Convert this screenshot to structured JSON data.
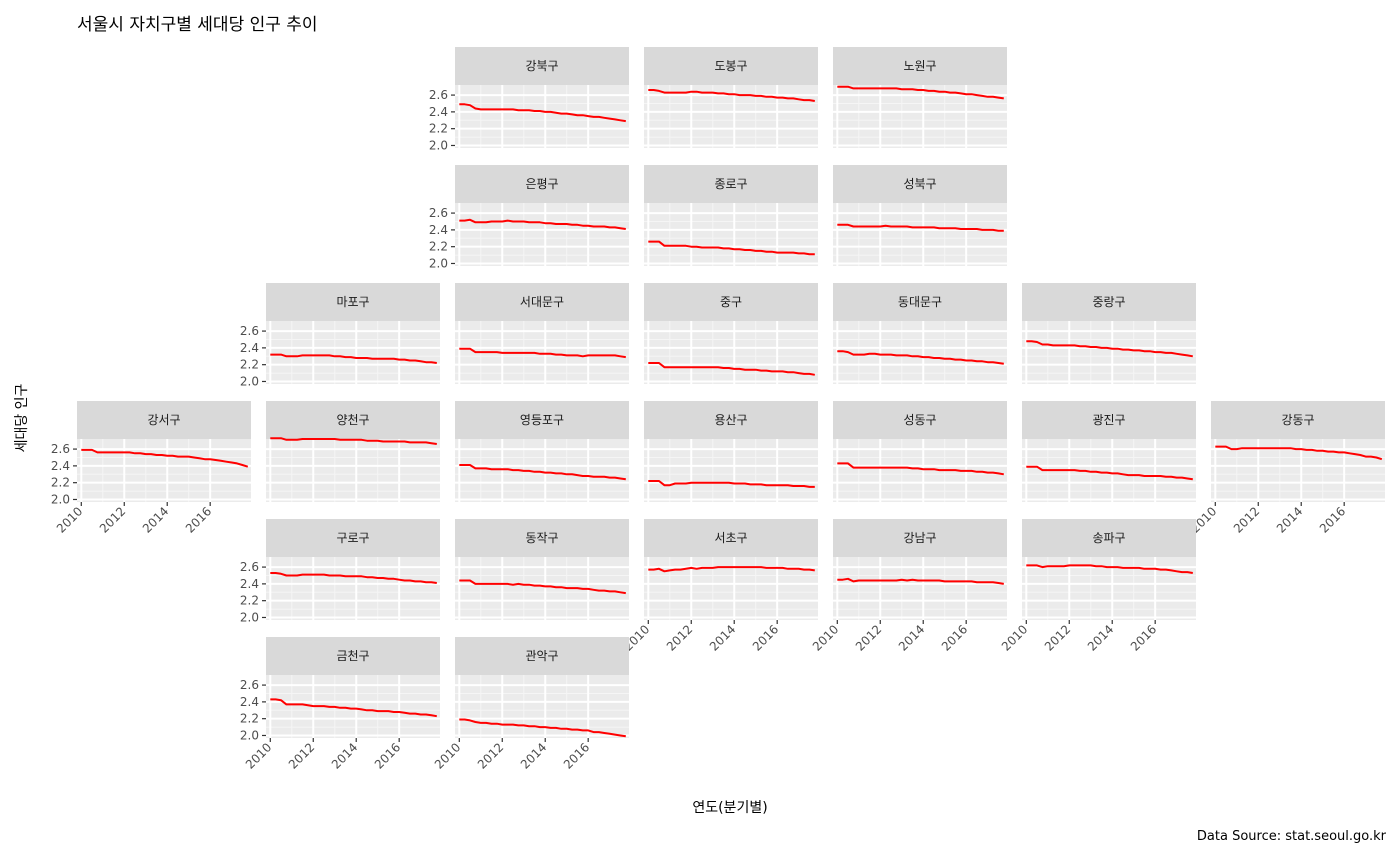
{
  "chart_data": {
    "type": "line",
    "title": "서울시 자치구별 세대당 인구 추이",
    "xlabel": "연도(분기별)",
    "ylabel": "세대당 인구",
    "caption": "Data Source: stat.seoul.go.kr",
    "y_ticks": [
      "2.0",
      "2.2",
      "2.4",
      "2.6"
    ],
    "x_ticks": [
      "2010",
      "2012",
      "2014",
      "2016"
    ],
    "ylim": [
      1.97,
      2.72
    ],
    "xlim": [
      2009.8,
      2017.9
    ],
    "line_color": "#ff0000",
    "grid": true,
    "x_quarters": [
      2010.0,
      2010.25,
      2010.5,
      2010.75,
      2011.0,
      2011.25,
      2011.5,
      2011.75,
      2012.0,
      2012.25,
      2012.5,
      2012.75,
      2013.0,
      2013.25,
      2013.5,
      2013.75,
      2014.0,
      2014.25,
      2014.5,
      2014.75,
      2015.0,
      2015.25,
      2015.5,
      2015.75,
      2016.0,
      2016.25,
      2016.5,
      2016.75,
      2017.0,
      2017.25,
      2017.5,
      2017.75
    ],
    "panels": [
      {
        "name": "강북구",
        "row": 0,
        "col": 2,
        "values": [
          2.49,
          2.49,
          2.48,
          2.44,
          2.43,
          2.43,
          2.43,
          2.43,
          2.43,
          2.43,
          2.43,
          2.42,
          2.42,
          2.42,
          2.41,
          2.41,
          2.4,
          2.4,
          2.39,
          2.38,
          2.38,
          2.37,
          2.36,
          2.36,
          2.35,
          2.34,
          2.34,
          2.33,
          2.32,
          2.31,
          2.3,
          2.29
        ]
      },
      {
        "name": "도봉구",
        "row": 0,
        "col": 3,
        "values": [
          2.66,
          2.66,
          2.65,
          2.63,
          2.63,
          2.63,
          2.63,
          2.63,
          2.64,
          2.64,
          2.63,
          2.63,
          2.63,
          2.62,
          2.62,
          2.61,
          2.61,
          2.6,
          2.6,
          2.6,
          2.59,
          2.59,
          2.58,
          2.58,
          2.57,
          2.57,
          2.56,
          2.56,
          2.55,
          2.54,
          2.54,
          2.53
        ]
      },
      {
        "name": "노원구",
        "row": 0,
        "col": 4,
        "values": [
          2.7,
          2.7,
          2.7,
          2.68,
          2.68,
          2.68,
          2.68,
          2.68,
          2.68,
          2.68,
          2.68,
          2.68,
          2.67,
          2.67,
          2.67,
          2.66,
          2.66,
          2.65,
          2.65,
          2.64,
          2.64,
          2.63,
          2.63,
          2.62,
          2.61,
          2.61,
          2.6,
          2.59,
          2.58,
          2.58,
          2.57,
          2.56
        ]
      },
      {
        "name": "은평구",
        "row": 1,
        "col": 2,
        "values": [
          2.51,
          2.51,
          2.52,
          2.49,
          2.49,
          2.49,
          2.5,
          2.5,
          2.5,
          2.51,
          2.5,
          2.5,
          2.5,
          2.49,
          2.49,
          2.49,
          2.48,
          2.48,
          2.47,
          2.47,
          2.47,
          2.46,
          2.46,
          2.45,
          2.45,
          2.44,
          2.44,
          2.44,
          2.43,
          2.43,
          2.42,
          2.41
        ]
      },
      {
        "name": "종로구",
        "row": 1,
        "col": 3,
        "values": [
          2.26,
          2.26,
          2.26,
          2.21,
          2.21,
          2.21,
          2.21,
          2.21,
          2.2,
          2.2,
          2.19,
          2.19,
          2.19,
          2.19,
          2.18,
          2.18,
          2.17,
          2.17,
          2.16,
          2.16,
          2.15,
          2.15,
          2.14,
          2.14,
          2.13,
          2.13,
          2.13,
          2.13,
          2.12,
          2.12,
          2.11,
          2.11
        ]
      },
      {
        "name": "성북구",
        "row": 1,
        "col": 4,
        "values": [
          2.46,
          2.46,
          2.46,
          2.44,
          2.44,
          2.44,
          2.44,
          2.44,
          2.44,
          2.45,
          2.44,
          2.44,
          2.44,
          2.44,
          2.43,
          2.43,
          2.43,
          2.43,
          2.43,
          2.42,
          2.42,
          2.42,
          2.42,
          2.41,
          2.41,
          2.41,
          2.41,
          2.4,
          2.4,
          2.4,
          2.39,
          2.39
        ]
      },
      {
        "name": "마포구",
        "row": 2,
        "col": 1,
        "values": [
          2.32,
          2.32,
          2.32,
          2.3,
          2.3,
          2.3,
          2.31,
          2.31,
          2.31,
          2.31,
          2.31,
          2.31,
          2.3,
          2.3,
          2.29,
          2.29,
          2.28,
          2.28,
          2.28,
          2.27,
          2.27,
          2.27,
          2.27,
          2.27,
          2.26,
          2.26,
          2.25,
          2.25,
          2.24,
          2.23,
          2.23,
          2.22
        ]
      },
      {
        "name": "서대문구",
        "row": 2,
        "col": 2,
        "values": [
          2.39,
          2.39,
          2.39,
          2.35,
          2.35,
          2.35,
          2.35,
          2.35,
          2.34,
          2.34,
          2.34,
          2.34,
          2.34,
          2.34,
          2.34,
          2.33,
          2.33,
          2.33,
          2.32,
          2.32,
          2.31,
          2.31,
          2.31,
          2.3,
          2.31,
          2.31,
          2.31,
          2.31,
          2.31,
          2.31,
          2.3,
          2.29
        ]
      },
      {
        "name": "중구",
        "row": 2,
        "col": 3,
        "values": [
          2.22,
          2.22,
          2.22,
          2.17,
          2.17,
          2.17,
          2.17,
          2.17,
          2.17,
          2.17,
          2.17,
          2.17,
          2.17,
          2.17,
          2.16,
          2.16,
          2.15,
          2.15,
          2.14,
          2.14,
          2.14,
          2.13,
          2.13,
          2.12,
          2.12,
          2.12,
          2.11,
          2.11,
          2.1,
          2.09,
          2.09,
          2.08
        ]
      },
      {
        "name": "동대문구",
        "row": 2,
        "col": 4,
        "values": [
          2.36,
          2.36,
          2.35,
          2.32,
          2.32,
          2.32,
          2.33,
          2.33,
          2.32,
          2.32,
          2.32,
          2.31,
          2.31,
          2.31,
          2.3,
          2.3,
          2.29,
          2.29,
          2.28,
          2.28,
          2.27,
          2.27,
          2.26,
          2.26,
          2.25,
          2.25,
          2.24,
          2.24,
          2.23,
          2.23,
          2.22,
          2.21
        ]
      },
      {
        "name": "중랑구",
        "row": 2,
        "col": 5,
        "values": [
          2.48,
          2.48,
          2.47,
          2.44,
          2.44,
          2.43,
          2.43,
          2.43,
          2.43,
          2.43,
          2.42,
          2.42,
          2.41,
          2.41,
          2.4,
          2.4,
          2.39,
          2.39,
          2.38,
          2.38,
          2.37,
          2.37,
          2.36,
          2.36,
          2.35,
          2.35,
          2.34,
          2.34,
          2.33,
          2.32,
          2.31,
          2.3
        ]
      },
      {
        "name": "강서구",
        "row": 3,
        "col": 0,
        "values": [
          2.59,
          2.59,
          2.59,
          2.56,
          2.56,
          2.56,
          2.56,
          2.56,
          2.56,
          2.56,
          2.55,
          2.55,
          2.54,
          2.54,
          2.53,
          2.53,
          2.52,
          2.52,
          2.51,
          2.51,
          2.51,
          2.5,
          2.49,
          2.48,
          2.48,
          2.47,
          2.46,
          2.45,
          2.44,
          2.43,
          2.41,
          2.39
        ]
      },
      {
        "name": "양천구",
        "row": 3,
        "col": 1,
        "values": [
          2.73,
          2.73,
          2.73,
          2.71,
          2.71,
          2.71,
          2.72,
          2.72,
          2.72,
          2.72,
          2.72,
          2.72,
          2.72,
          2.71,
          2.71,
          2.71,
          2.71,
          2.71,
          2.7,
          2.7,
          2.7,
          2.69,
          2.69,
          2.69,
          2.69,
          2.69,
          2.68,
          2.68,
          2.68,
          2.68,
          2.67,
          2.66
        ]
      },
      {
        "name": "영등포구",
        "row": 3,
        "col": 2,
        "values": [
          2.41,
          2.41,
          2.41,
          2.37,
          2.37,
          2.37,
          2.36,
          2.36,
          2.36,
          2.36,
          2.35,
          2.35,
          2.34,
          2.34,
          2.33,
          2.33,
          2.32,
          2.32,
          2.31,
          2.31,
          2.3,
          2.3,
          2.29,
          2.28,
          2.28,
          2.27,
          2.27,
          2.27,
          2.26,
          2.26,
          2.25,
          2.24
        ]
      },
      {
        "name": "용산구",
        "row": 3,
        "col": 3,
        "values": [
          2.22,
          2.22,
          2.22,
          2.17,
          2.17,
          2.19,
          2.19,
          2.19,
          2.2,
          2.2,
          2.2,
          2.2,
          2.2,
          2.2,
          2.2,
          2.2,
          2.19,
          2.19,
          2.19,
          2.18,
          2.18,
          2.18,
          2.17,
          2.17,
          2.17,
          2.17,
          2.17,
          2.16,
          2.16,
          2.16,
          2.15,
          2.15
        ]
      },
      {
        "name": "성동구",
        "row": 3,
        "col": 4,
        "values": [
          2.43,
          2.43,
          2.43,
          2.38,
          2.38,
          2.38,
          2.38,
          2.38,
          2.38,
          2.38,
          2.38,
          2.38,
          2.38,
          2.38,
          2.37,
          2.37,
          2.36,
          2.36,
          2.36,
          2.35,
          2.35,
          2.35,
          2.35,
          2.34,
          2.34,
          2.34,
          2.33,
          2.33,
          2.32,
          2.32,
          2.31,
          2.3
        ]
      },
      {
        "name": "광진구",
        "row": 3,
        "col": 5,
        "values": [
          2.39,
          2.39,
          2.39,
          2.35,
          2.35,
          2.35,
          2.35,
          2.35,
          2.35,
          2.35,
          2.34,
          2.34,
          2.33,
          2.33,
          2.32,
          2.32,
          2.31,
          2.31,
          2.3,
          2.29,
          2.29,
          2.29,
          2.28,
          2.28,
          2.28,
          2.28,
          2.27,
          2.27,
          2.26,
          2.26,
          2.25,
          2.24
        ]
      },
      {
        "name": "강동구",
        "row": 3,
        "col": 6,
        "values": [
          2.63,
          2.63,
          2.63,
          2.6,
          2.6,
          2.61,
          2.61,
          2.61,
          2.61,
          2.61,
          2.61,
          2.61,
          2.61,
          2.61,
          2.61,
          2.6,
          2.6,
          2.59,
          2.59,
          2.58,
          2.58,
          2.57,
          2.57,
          2.56,
          2.56,
          2.55,
          2.54,
          2.53,
          2.51,
          2.51,
          2.5,
          2.48
        ]
      },
      {
        "name": "구로구",
        "row": 4,
        "col": 1,
        "values": [
          2.53,
          2.53,
          2.52,
          2.5,
          2.5,
          2.5,
          2.51,
          2.51,
          2.51,
          2.51,
          2.51,
          2.5,
          2.5,
          2.5,
          2.49,
          2.49,
          2.49,
          2.49,
          2.48,
          2.48,
          2.47,
          2.47,
          2.46,
          2.46,
          2.45,
          2.44,
          2.44,
          2.43,
          2.43,
          2.42,
          2.42,
          2.41
        ]
      },
      {
        "name": "동작구",
        "row": 4,
        "col": 2,
        "values": [
          2.44,
          2.44,
          2.44,
          2.4,
          2.4,
          2.4,
          2.4,
          2.4,
          2.4,
          2.4,
          2.39,
          2.4,
          2.39,
          2.39,
          2.38,
          2.38,
          2.37,
          2.37,
          2.36,
          2.36,
          2.35,
          2.35,
          2.35,
          2.34,
          2.34,
          2.33,
          2.32,
          2.32,
          2.31,
          2.31,
          2.3,
          2.29
        ]
      },
      {
        "name": "서초구",
        "row": 4,
        "col": 3,
        "values": [
          2.57,
          2.57,
          2.58,
          2.55,
          2.56,
          2.57,
          2.57,
          2.58,
          2.59,
          2.58,
          2.59,
          2.59,
          2.59,
          2.6,
          2.6,
          2.6,
          2.6,
          2.6,
          2.6,
          2.6,
          2.6,
          2.6,
          2.59,
          2.59,
          2.59,
          2.59,
          2.58,
          2.58,
          2.58,
          2.57,
          2.57,
          2.56
        ]
      },
      {
        "name": "강남구",
        "row": 4,
        "col": 4,
        "values": [
          2.45,
          2.45,
          2.46,
          2.43,
          2.44,
          2.44,
          2.44,
          2.44,
          2.44,
          2.44,
          2.44,
          2.44,
          2.45,
          2.44,
          2.45,
          2.44,
          2.44,
          2.44,
          2.44,
          2.44,
          2.43,
          2.43,
          2.43,
          2.43,
          2.43,
          2.43,
          2.42,
          2.42,
          2.42,
          2.42,
          2.41,
          2.4
        ]
      },
      {
        "name": "송파구",
        "row": 4,
        "col": 5,
        "values": [
          2.62,
          2.62,
          2.62,
          2.6,
          2.61,
          2.61,
          2.61,
          2.61,
          2.62,
          2.62,
          2.62,
          2.62,
          2.62,
          2.61,
          2.61,
          2.6,
          2.6,
          2.6,
          2.59,
          2.59,
          2.59,
          2.59,
          2.58,
          2.58,
          2.58,
          2.57,
          2.57,
          2.56,
          2.55,
          2.54,
          2.54,
          2.53
        ]
      },
      {
        "name": "금천구",
        "row": 5,
        "col": 1,
        "values": [
          2.43,
          2.43,
          2.42,
          2.37,
          2.37,
          2.37,
          2.37,
          2.36,
          2.35,
          2.35,
          2.35,
          2.34,
          2.34,
          2.33,
          2.33,
          2.32,
          2.32,
          2.31,
          2.3,
          2.3,
          2.29,
          2.29,
          2.29,
          2.28,
          2.28,
          2.27,
          2.26,
          2.26,
          2.25,
          2.25,
          2.24,
          2.23
        ]
      },
      {
        "name": "관악구",
        "row": 5,
        "col": 2,
        "values": [
          2.19,
          2.19,
          2.18,
          2.16,
          2.15,
          2.15,
          2.14,
          2.14,
          2.13,
          2.13,
          2.13,
          2.12,
          2.12,
          2.11,
          2.11,
          2.1,
          2.1,
          2.09,
          2.09,
          2.08,
          2.08,
          2.07,
          2.07,
          2.06,
          2.06,
          2.04,
          2.04,
          2.03,
          2.02,
          2.01,
          2.0,
          1.99
        ]
      }
    ]
  }
}
